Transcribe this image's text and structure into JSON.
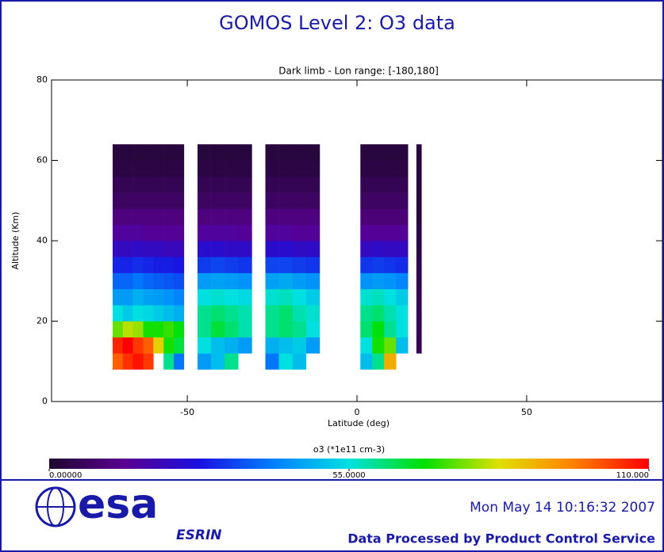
{
  "chart_data": {
    "type": "heatmap",
    "title": "GOMOS Level 2: O3 data",
    "subtitle": "Dark limb    - Lon range: [-180,180]",
    "x_label": "Latitude (deg)",
    "y_label": "Altitude (Km)",
    "xlim": [
      -90,
      90
    ],
    "ylim": [
      0,
      80
    ],
    "xticks": [
      -50,
      0,
      50
    ],
    "yticks": [
      0,
      20,
      40,
      60,
      80
    ],
    "x_bins": [
      -72,
      -69,
      -66,
      -63,
      -60,
      -57,
      -54,
      -51,
      -47,
      -43,
      -39,
      -35,
      -31,
      -27,
      -23,
      -19,
      -15,
      -11,
      1,
      4.5,
      8,
      11.5,
      15,
      17.5,
      19
    ],
    "y_bins": [
      8,
      12,
      16,
      20,
      24,
      28,
      32,
      36,
      40,
      44,
      48,
      52,
      56,
      60,
      64
    ],
    "z": [
      [
        100,
        105,
        108,
        104,
        null,
        60,
        40,
        null,
        45,
        50,
        60,
        null,
        null,
        40,
        55,
        50,
        null,
        null,
        50,
        60,
        90,
        null,
        null,
        null
      ],
      [
        106,
        110,
        104,
        100,
        85,
        70,
        65,
        null,
        55,
        50,
        48,
        45,
        null,
        48,
        50,
        52,
        45,
        null,
        55,
        70,
        75,
        50,
        null,
        5
      ],
      [
        75,
        80,
        78,
        70,
        70,
        72,
        68,
        null,
        60,
        65,
        62,
        58,
        null,
        60,
        62,
        60,
        55,
        null,
        62,
        68,
        60,
        55,
        null,
        5
      ],
      [
        55,
        52,
        55,
        54,
        52,
        50,
        48,
        null,
        60,
        62,
        60,
        58,
        null,
        60,
        62,
        58,
        56,
        null,
        60,
        62,
        58,
        55,
        null,
        5
      ],
      [
        45,
        45,
        48,
        46,
        45,
        44,
        42,
        null,
        55,
        56,
        55,
        54,
        null,
        56,
        57,
        55,
        52,
        null,
        56,
        57,
        55,
        52,
        null,
        5
      ],
      [
        38,
        38,
        40,
        38,
        37,
        36,
        35,
        null,
        45,
        46,
        45,
        44,
        null,
        46,
        47,
        45,
        44,
        null,
        44,
        45,
        44,
        42,
        null,
        4
      ],
      [
        30,
        30,
        31,
        30,
        29,
        29,
        28,
        null,
        33,
        34,
        33,
        32,
        null,
        34,
        34,
        33,
        32,
        null,
        32,
        33,
        32,
        31,
        null,
        4
      ],
      [
        22,
        22,
        23,
        22,
        22,
        21,
        21,
        null,
        24,
        24,
        23,
        23,
        null,
        24,
        24,
        23,
        23,
        null,
        22,
        23,
        22,
        22,
        null,
        3
      ],
      [
        16,
        16,
        16,
        15,
        15,
        15,
        15,
        null,
        16,
        16,
        16,
        15,
        null,
        16,
        16,
        15,
        15,
        null,
        15,
        15,
        15,
        15,
        null,
        3
      ],
      [
        11,
        11,
        11,
        11,
        11,
        11,
        11,
        null,
        11,
        11,
        11,
        11,
        null,
        11,
        11,
        11,
        11,
        null,
        10,
        10,
        10,
        10,
        null,
        2
      ],
      [
        7,
        7,
        7,
        7,
        7,
        7,
        7,
        null,
        7,
        7,
        7,
        7,
        null,
        7,
        7,
        7,
        7,
        null,
        7,
        7,
        7,
        7,
        null,
        2
      ],
      [
        5,
        5,
        5,
        5,
        5,
        5,
        5,
        null,
        5,
        5,
        5,
        5,
        null,
        5,
        5,
        5,
        5,
        null,
        5,
        5,
        5,
        5,
        null,
        2
      ],
      [
        3,
        3,
        3,
        3,
        3,
        3,
        3,
        null,
        3,
        3,
        3,
        3,
        null,
        3,
        3,
        3,
        3,
        null,
        3,
        3,
        3,
        3,
        null,
        2
      ],
      [
        2,
        2,
        2,
        2,
        2,
        2,
        2,
        null,
        2,
        2,
        2,
        2,
        null,
        2,
        2,
        2,
        2,
        null,
        2,
        2,
        2,
        2,
        null,
        2
      ]
    ],
    "colors": [
      "#1e0830",
      "#5a0090",
      "#1a10e0",
      "#0080ff",
      "#00e0e0",
      "#00e000",
      "#e0e000",
      "#ff8000",
      "#ff0000"
    ],
    "colorbar": {
      "title": "o3 (*1e11 cm-3)",
      "clim": [
        0,
        110
      ],
      "ticks": [
        {
          "value": 0,
          "label": "0.00000"
        },
        {
          "value": 55,
          "label": "55.0000"
        },
        {
          "value": 110,
          "label": "110.000"
        }
      ]
    }
  },
  "footer": {
    "timestamp": "Mon May 14 10:16:32 2007",
    "credit": "Data Processed by Product Control Service"
  },
  "logo": {
    "name": "esa",
    "site": "ESRIN"
  }
}
